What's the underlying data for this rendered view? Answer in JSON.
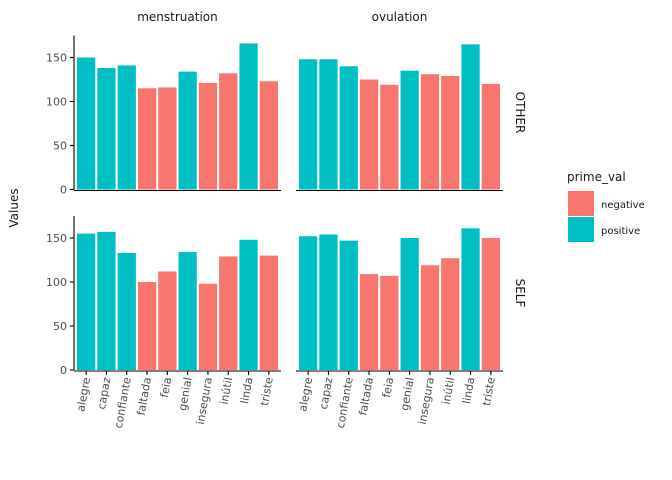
{
  "chart_data": {
    "type": "bar",
    "facet_columns": [
      "menstruation",
      "ovulation"
    ],
    "facet_rows": [
      "OTHER",
      "SELF"
    ],
    "categories": [
      "alegre",
      "capaz",
      "confiante",
      "faltada",
      "feia",
      "genial",
      "insegura",
      "inútil",
      "linda",
      "triste"
    ],
    "prime_val": [
      "positive",
      "positive",
      "positive",
      "negative",
      "negative",
      "positive",
      "negative",
      "negative",
      "positive",
      "negative"
    ],
    "ylabel": "Values",
    "xlabel": "",
    "ylim": [
      0,
      175
    ],
    "yticks": [
      0,
      50,
      100,
      150
    ],
    "legend": {
      "title": "prime_val",
      "position": "right",
      "items": [
        {
          "label": "negative",
          "color": "#F8766D"
        },
        {
          "label": "positive",
          "color": "#00BFC4"
        }
      ]
    },
    "panels": [
      {
        "row": "OTHER",
        "col": "menstruation",
        "values": [
          150,
          138,
          141,
          115,
          116,
          134,
          121,
          132,
          166,
          123
        ]
      },
      {
        "row": "OTHER",
        "col": "ovulation",
        "values": [
          148,
          148,
          140,
          125,
          119,
          135,
          131,
          129,
          165,
          120
        ]
      },
      {
        "row": "SELF",
        "col": "menstruation",
        "values": [
          155,
          157,
          133,
          100,
          112,
          134,
          98,
          129,
          148,
          130
        ]
      },
      {
        "row": "SELF",
        "col": "ovulation",
        "values": [
          152,
          154,
          147,
          109,
          107,
          150,
          119,
          127,
          161,
          150
        ]
      }
    ],
    "grid": false
  }
}
